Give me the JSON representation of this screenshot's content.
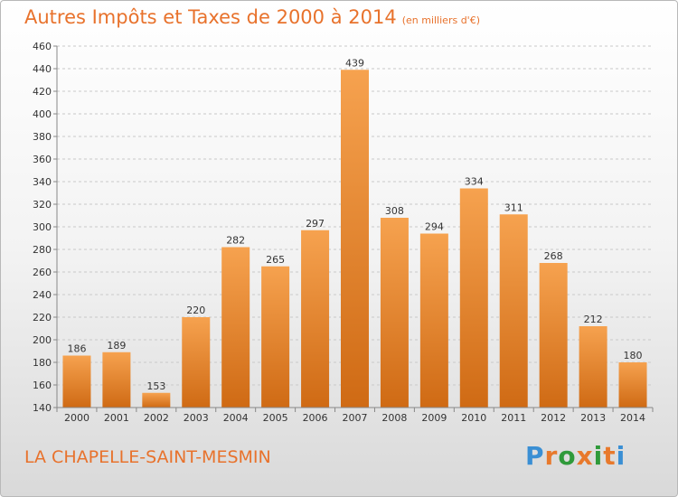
{
  "title": "Autres Impôts et Taxes de 2000 à 2014",
  "subtitle": "(en milliers d'€)",
  "city": "LA CHAPELLE-SAINT-MESMIN",
  "logo": {
    "text": "Proxiti",
    "letters": [
      "P",
      "r",
      "o",
      "x",
      "i",
      "t",
      "i"
    ],
    "colors": [
      "#3a8fd4",
      "#e8792c",
      "#2f9a3a",
      "#e8792c",
      "#2f9a3a",
      "#e8792c",
      "#3a8fd4"
    ]
  },
  "colors": {
    "bar_light": "#f6a24f",
    "bar_dark": "#cf6a14",
    "title": "#e8722c"
  },
  "chart_data": {
    "type": "bar",
    "categories": [
      "2000",
      "2001",
      "2002",
      "2003",
      "2004",
      "2005",
      "2006",
      "2007",
      "2008",
      "2009",
      "2010",
      "2011",
      "2012",
      "2013",
      "2014"
    ],
    "values": [
      186,
      189,
      153,
      220,
      282,
      265,
      297,
      439,
      308,
      294,
      334,
      311,
      268,
      212,
      180
    ],
    "value_labels": [
      "186",
      "189",
      "153",
      "220",
      "282",
      "265",
      "297",
      "439",
      "308",
      "294",
      "334",
      "311",
      "268",
      "212",
      "180"
    ],
    "ylim": [
      140,
      460
    ],
    "yticks": [
      140,
      160,
      180,
      200,
      220,
      240,
      260,
      280,
      300,
      320,
      340,
      360,
      380,
      400,
      420,
      440,
      460
    ],
    "ytick_labels": [
      "140",
      "160",
      "180",
      "200",
      "220",
      "240",
      "260",
      "280",
      "300",
      "320",
      "340",
      "360",
      "380",
      "400",
      "420",
      "440",
      "460"
    ],
    "grid": true
  }
}
